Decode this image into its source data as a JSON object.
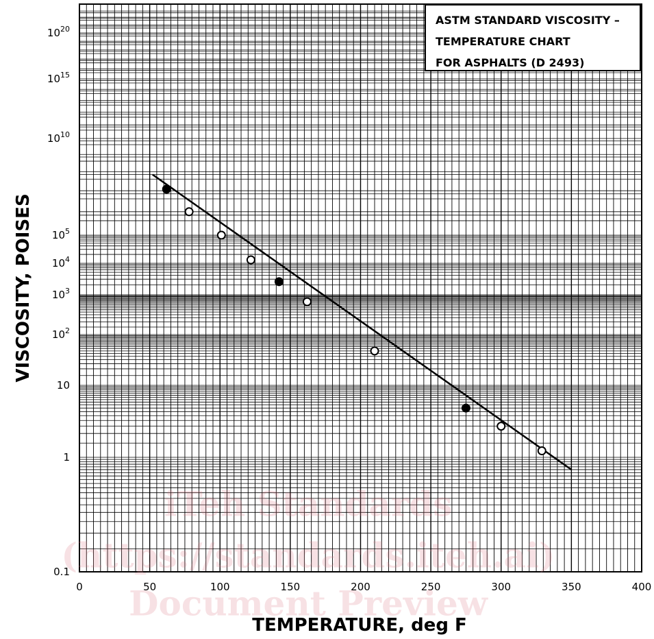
{
  "chart_data": {
    "type": "line",
    "title_lines": [
      "ASTM STANDARD VISCOSITY –",
      "TEMPERATURE CHART",
      "FOR ASPHALTS (D 2493)"
    ],
    "xlabel": "TEMPERATURE, deg F",
    "ylabel": "VISCOSITY, POISES",
    "xlim": [
      0,
      400
    ],
    "x_ticks": [
      "0",
      "50",
      "100",
      "150",
      "200",
      "250",
      "300",
      "350",
      "400"
    ],
    "y_scale": "ASTM viscosity-temperature (log log)",
    "y_ticks": [
      {
        "label": "0.1",
        "value": 0.1
      },
      {
        "label": "1",
        "value": 1
      },
      {
        "label": "10",
        "value": 10
      },
      {
        "label": "10^2",
        "value": 100
      },
      {
        "label": "10^3",
        "value": 1000
      },
      {
        "label": "10^4",
        "value": 10000
      },
      {
        "label": "10^5",
        "value": 100000
      },
      {
        "label": "10^10",
        "value": 10000000000
      },
      {
        "label": "10^15",
        "value": 1000000000000000
      },
      {
        "label": "10^20",
        "value": 100000000000000000000
      }
    ],
    "grid": true,
    "line": {
      "x": [
        52,
        350
      ],
      "y": [
        70000000.0,
        0.75
      ]
    },
    "series": [
      {
        "marker": "filled",
        "points": [
          {
            "x": 62,
            "y": 12000000.0
          },
          {
            "x": 142,
            "y": 2500
          },
          {
            "x": 275,
            "y": 4.5
          }
        ]
      },
      {
        "marker": "open",
        "points": [
          {
            "x": 78,
            "y": 1000000.0
          },
          {
            "x": 101,
            "y": 100000
          },
          {
            "x": 122,
            "y": 13000
          },
          {
            "x": 162,
            "y": 650
          },
          {
            "x": 210,
            "y": 45
          },
          {
            "x": 300,
            "y": 2.5
          },
          {
            "x": 329,
            "y": 1.2
          }
        ]
      }
    ],
    "colors": {
      "grid": "#000000",
      "line": "#000000",
      "marker_fill_open": "#ffffff"
    }
  },
  "watermark": {
    "lines": [
      "iTeh Standards",
      "(https://standards.iteh.ai)",
      "Document Preview"
    ]
  }
}
